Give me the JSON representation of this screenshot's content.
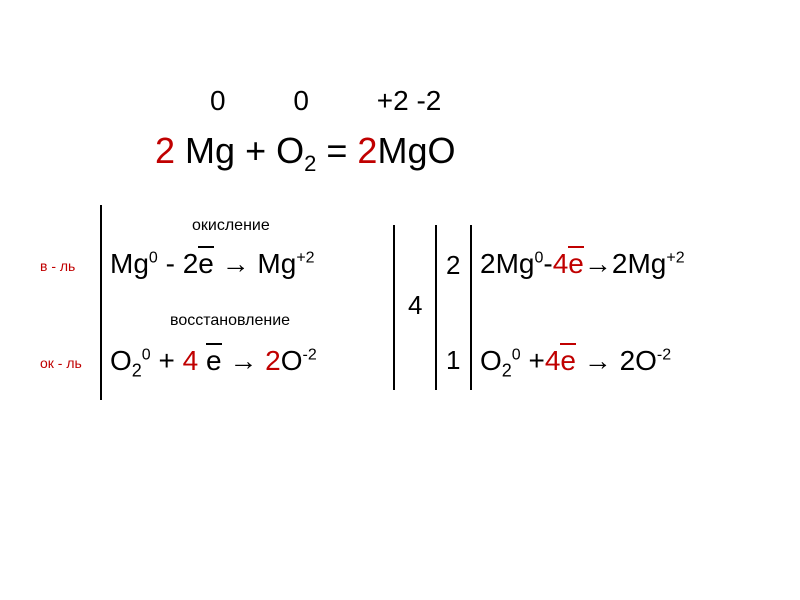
{
  "colors": {
    "red": "#c00000",
    "black": "#000000",
    "background": "#ffffff"
  },
  "oxidation_states": {
    "mg_reactant": "0",
    "o_reactant": "0",
    "mg_product": "+2",
    "o_product": "-2"
  },
  "main_equation": {
    "coeff_left": "2",
    "mg": "Mg",
    "plus": "+",
    "o2": "O",
    "o2_sub": "2",
    "equals": "=",
    "coeff_right": "2",
    "mgo": "MgO"
  },
  "labels": {
    "oxidizer": "в - ль",
    "reducer": "ок - ль",
    "oxidation": "окисление",
    "reduction": "восстановление"
  },
  "half_reactions": {
    "hr1": {
      "species_from": "Mg",
      "sup_from": "0",
      "e_count": "2",
      "e_symbol": "e",
      "arrow": "→",
      "species_to": "Mg",
      "sup_to": "+2",
      "sign": "-"
    },
    "hr2": {
      "species_from": "O",
      "sub_from": "2",
      "sup_from": "0",
      "sign": "+",
      "e_count": "4",
      "e_symbol": "e",
      "arrow": "→",
      "coeff_to": "2",
      "species_to": "O",
      "sup_to": "-2"
    },
    "hr3": {
      "coeff_from": "2",
      "species_from": "Mg",
      "sup_from": "0",
      "sign": "-",
      "e_count": "4",
      "e_symbol": "e",
      "arrow": "→",
      "coeff_to": "2",
      "species_to": "Mg",
      "sup_to": "+2"
    },
    "hr4": {
      "species_from": "O",
      "sub_from": "2",
      "sup_from": "0",
      "sign": "+",
      "e_count": "4",
      "e_symbol": "e",
      "arrow": "→",
      "coeff_to": "2",
      "species_to": "O",
      "sup_to": "-2"
    }
  },
  "ratios": {
    "lcm": "4",
    "mult_1": "2",
    "mult_2": "1"
  },
  "typography": {
    "main_fontsize": 36,
    "reaction_fontsize": 28,
    "label_fontsize": 16,
    "small_label_fontsize": 14
  }
}
